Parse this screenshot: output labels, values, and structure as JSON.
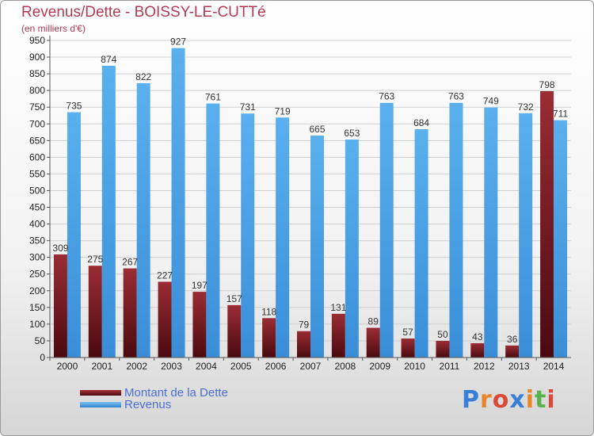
{
  "title": "Revenus/Dette - BOISSY-LE-CUTTé",
  "subtitle": "(en milliers d'€)",
  "brand": {
    "text": "Proxiti",
    "letter_colors": [
      "#3a7fd6",
      "#e8852a",
      "#d94a3a",
      "#3a7fd6",
      "#e8852a",
      "#5ab04a",
      "#d94a3a"
    ]
  },
  "colors": {
    "dette": "#7a1a22",
    "revenus": "#4aa3e8",
    "grid": "#cfcfcf",
    "axis": "#555555"
  },
  "chart_data": {
    "type": "bar",
    "categories": [
      "2000",
      "2001",
      "2002",
      "2003",
      "2004",
      "2005",
      "2006",
      "2007",
      "2008",
      "2009",
      "2010",
      "2011",
      "2012",
      "2013",
      "2014"
    ],
    "series": [
      {
        "name": "Montant de la Dette",
        "values": [
          309,
          275,
          267,
          227,
          197,
          157,
          118,
          79,
          131,
          89,
          57,
          50,
          43,
          36,
          798
        ]
      },
      {
        "name": "Revenus",
        "values": [
          735,
          874,
          822,
          927,
          761,
          731,
          719,
          665,
          653,
          763,
          684,
          763,
          749,
          732,
          711
        ]
      }
    ],
    "ylim": [
      0,
      950
    ],
    "ytick_step": 50,
    "grid": true,
    "legend_position": "bottom-left"
  }
}
